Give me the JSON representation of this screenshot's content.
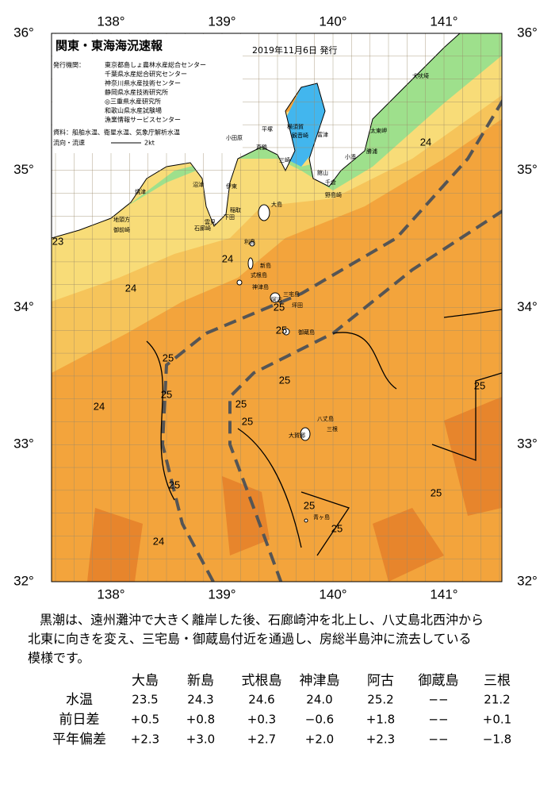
{
  "header": {
    "title": "関東・東海海況速報",
    "date": "2019年11月6日 発行",
    "issuer_label": "発行機関：",
    "issuers": [
      "東京都島しょ農林水産総合センター",
      "千葉県水産総合研究センター",
      "神奈川県水産技術センター",
      "静岡県水産技術研究所",
      "◎三重県水産研究所",
      "和歌山県水産試験場",
      "漁業情報サービスセンター"
    ],
    "sources": "資料：船舶水温、衛星水温、気象庁解析水温",
    "current_legend": "流向・流速",
    "current_scale": "2kt"
  },
  "map": {
    "lon_labels": [
      "138°",
      "139°",
      "140°",
      "141°"
    ],
    "lat_labels": [
      "36°",
      "35°",
      "34°",
      "33°",
      "32°"
    ],
    "places": [
      "大島",
      "利島",
      "新島",
      "式根島",
      "神津島",
      "三宅島",
      "阿古",
      "坪田",
      "御蔵島",
      "八丈島",
      "三根",
      "大賀郷",
      "青ヶ島",
      "犬吠埼",
      "太東岬",
      "勝浦",
      "小湊",
      "館山",
      "千倉",
      "野島崎",
      "横須賀",
      "観音崎",
      "富津",
      "平塚",
      "小田原",
      "真鶴",
      "三崎",
      "伊東",
      "稲取",
      "下田",
      "雲見",
      "石廊崎",
      "沼津",
      "焼津",
      "地頭方",
      "御前崎"
    ],
    "temperature_labels": [
      "24",
      "23",
      "24",
      "24",
      "25",
      "25",
      "25",
      "25",
      "25",
      "25",
      "24",
      "25",
      "25",
      "25",
      "25",
      "25",
      "24",
      "25"
    ]
  },
  "summary": [
    "黒潮は、遠州灘沖で大きく離岸した後、石廊崎沖を北上し、八丈島北西沖から",
    "北東に向きを変え、三宅島・御蔵島付近を通過し、房総半島沖に流去している",
    "模様です。"
  ],
  "table": {
    "columns": [
      "大島",
      "新島",
      "式根島",
      "神津島",
      "阿古",
      "御蔵島",
      "三根"
    ],
    "rows": [
      {
        "label": "水温",
        "cells": [
          "23.5",
          "24.3",
          "24.6",
          "24.0",
          "25.2",
          "−−",
          "21.2"
        ]
      },
      {
        "label": "前日差",
        "cells": [
          "+0.5",
          "+0.8",
          "+0.3",
          "−0.6",
          "+1.8",
          "−−",
          "+0.1"
        ]
      },
      {
        "label": "平年偏差",
        "cells": [
          "+2.3",
          "+3.0",
          "+2.7",
          "+2.0",
          "+2.3",
          "−−",
          "−1.8"
        ]
      }
    ]
  }
}
